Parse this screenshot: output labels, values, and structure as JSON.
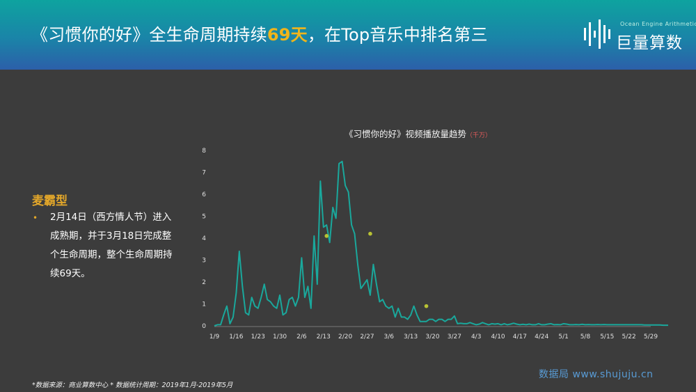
{
  "header": {
    "title_pre": "《习惯你的好》全生命周期持续",
    "title_highlight": "69天",
    "title_post": "，在Top音乐中排名第三",
    "logo_text": "巨量算数",
    "logo_small": "Ocean Engine Arithmetic"
  },
  "left_panel": {
    "heading": "麦霸型",
    "bullet": "2月14日（西方情人节）进入成熟期，并于3月18日完成整个生命周期，整个生命周期持续69天。"
  },
  "footnote": "*数据来源：商业算数中心 * 数据统计周期：2019年1月-2019年5月",
  "watermark": "数据局 www.shujuju.cn",
  "colors": {
    "line": "#1aa89c",
    "marker": "#b8c234",
    "highlight": "#f0b51b",
    "heading": "#e3a72a"
  },
  "chart_data": {
    "type": "line",
    "title": "《习惯你的好》视频播放量趋势",
    "title_unit": "（千万）",
    "ylim": [
      0,
      8
    ],
    "yticks": [
      0,
      1,
      2,
      3,
      4,
      5,
      6,
      7,
      8
    ],
    "xticks": [
      "1/9",
      "1/16",
      "1/23",
      "1/30",
      "2/6",
      "2/13",
      "2/20",
      "2/27",
      "3/6",
      "3/13",
      "3/20",
      "3/27",
      "4/3",
      "4/10",
      "4/17",
      "4/24",
      "5/1",
      "5/8",
      "5/15",
      "5/22",
      "5/29"
    ],
    "x_start_label": "1/9",
    "values": [
      0,
      0.05,
      0.05,
      0.5,
      0.9,
      0.1,
      0.4,
      1.5,
      3.4,
      1.8,
      0.6,
      0.5,
      1.3,
      0.9,
      0.8,
      1.3,
      1.9,
      1.2,
      1.1,
      0.9,
      0.8,
      1.4,
      0.5,
      0.6,
      1.2,
      1.3,
      0.9,
      1.3,
      3.1,
      1.3,
      1.8,
      0.8,
      4.1,
      1.9,
      6.6,
      4.5,
      4.6,
      3.8,
      5.4,
      4.9,
      7.4,
      7.5,
      6.4,
      6.1,
      4.6,
      4.2,
      2.8,
      1.7,
      1.9,
      2.1,
      1.4,
      2.8,
      1.9,
      1.1,
      1.2,
      0.9,
      0.8,
      0.9,
      0.4,
      0.8,
      0.4,
      0.4,
      0.3,
      0.5,
      0.9,
      0.5,
      0.2,
      0.2,
      0.2,
      0.3,
      0.3,
      0.2,
      0.3,
      0.3,
      0.2,
      0.3,
      0.3,
      0.45,
      0.1,
      0.12,
      0.1,
      0.1,
      0.15,
      0.1,
      0.05,
      0.08,
      0.15,
      0.1,
      0.05,
      0.1,
      0.08,
      0.1,
      0.05,
      0.1,
      0.05,
      0.08,
      0.12,
      0.08,
      0.05,
      0.07,
      0.05,
      0.08,
      0.05,
      0.05,
      0.1,
      0.05,
      0.05,
      0.08,
      0.1,
      0.05,
      0.06,
      0.05,
      0.1,
      0.08,
      0.05,
      0.05,
      0.06,
      0.05,
      0.07,
      0.05,
      0.06,
      0.05,
      0.05,
      0.06,
      0.05,
      0.06,
      0.05,
      0.05,
      0.05,
      0.05,
      0.05,
      0.05,
      0.05,
      0.05,
      0.05,
      0.05,
      0.05,
      0.05,
      0.04,
      0.04,
      0.04,
      0.04,
      0.04,
      0.04,
      0.03,
      0.03,
      0.03,
      0.03,
      0.03,
      0.02,
      0.02,
      0.02
    ],
    "markers": [
      {
        "day": 36,
        "value": 4.1
      },
      {
        "day": 50,
        "value": 4.2
      },
      {
        "day": 68,
        "value": 0.9
      }
    ]
  }
}
